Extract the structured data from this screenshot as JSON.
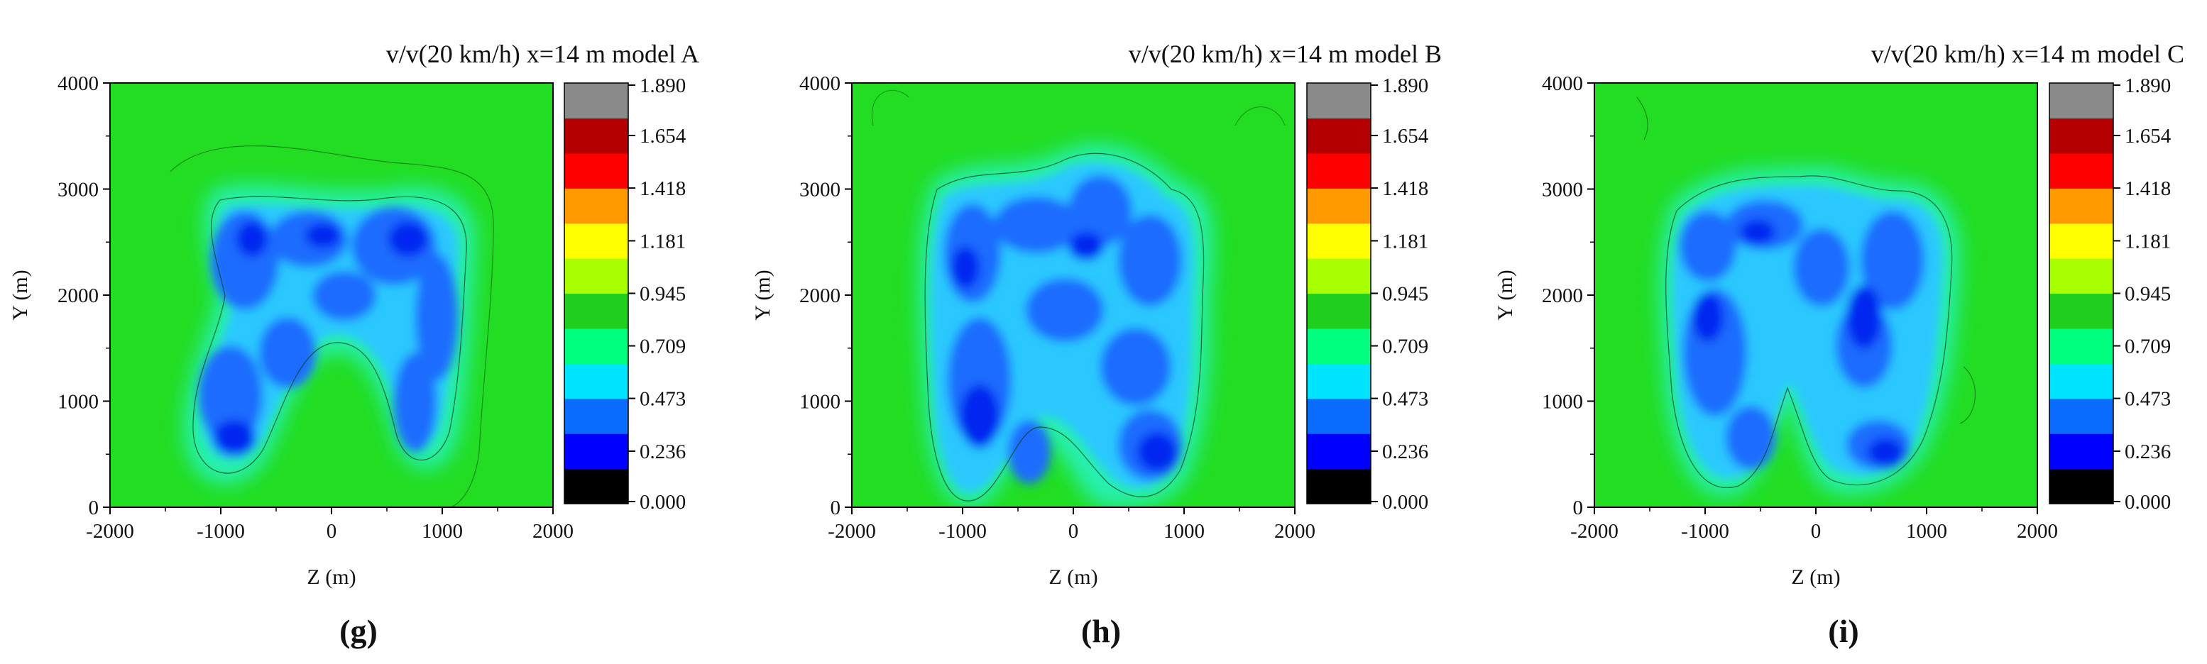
{
  "figure": {
    "panels": [
      "g",
      "h",
      "i"
    ]
  },
  "chart_data": [
    {
      "type": "heatmap",
      "panel_label": "g",
      "title": "v/v(20 km/h) x=14 m model A",
      "xlabel": "Z (m)",
      "ylabel": "Y (m)",
      "xlim": [
        -2000,
        2000
      ],
      "ylim": [
        0,
        4000
      ],
      "xticks": [
        -2000,
        -1000,
        0,
        1000,
        2000
      ],
      "yticks": [
        0,
        1000,
        2000,
        3000,
        4000
      ],
      "colorbar": {
        "min": 0.0,
        "max": 1.89,
        "tick_values": [
          1.89,
          1.654,
          1.418,
          1.181,
          0.945,
          0.709,
          0.473,
          0.236,
          0.0
        ],
        "tick_labels": [
          "1.890",
          "1.654",
          "1.418",
          "1.181",
          "0.945",
          "0.709",
          "0.473",
          "0.236",
          "0.000"
        ],
        "colors": [
          "#000000",
          "#0000ff",
          "#0a6cff",
          "#00e5ff",
          "#00ff7f",
          "#1ecf1e",
          "#a8ff00",
          "#ffff00",
          "#ff9900",
          "#ff0000",
          "#b40000",
          "#8a8a8a"
        ]
      },
      "field": {
        "background": 0.95,
        "low_speed_zone_Z": [
          -1200,
          1100
        ],
        "low_speed_zone_Y": [
          100,
          2900
        ],
        "min_value_approx": 0.2
      }
    },
    {
      "type": "heatmap",
      "panel_label": "h",
      "title": "v/v(20 km/h) x=14 m model B",
      "xlabel": "Z (m)",
      "ylabel": "Y (m)",
      "xlim": [
        -2000,
        2000
      ],
      "ylim": [
        0,
        4000
      ],
      "xticks": [
        -2000,
        -1000,
        0,
        1000,
        2000
      ],
      "yticks": [
        0,
        1000,
        2000,
        3000,
        4000
      ],
      "colorbar": {
        "min": 0.0,
        "max": 1.89,
        "tick_values": [
          1.89,
          1.654,
          1.418,
          1.181,
          0.945,
          0.709,
          0.473,
          0.236,
          0.0
        ],
        "tick_labels": [
          "1.890",
          "1.654",
          "1.418",
          "1.181",
          "0.945",
          "0.709",
          "0.473",
          "0.236",
          "0.000"
        ],
        "colors": [
          "#000000",
          "#0000ff",
          "#0a6cff",
          "#00e5ff",
          "#00ff7f",
          "#1ecf1e",
          "#a8ff00",
          "#ffff00",
          "#ff9900",
          "#ff0000",
          "#b40000",
          "#8a8a8a"
        ]
      },
      "field": {
        "background": 0.95,
        "low_speed_zone_Z": [
          -1300,
          1200
        ],
        "low_speed_zone_Y": [
          0,
          3400
        ],
        "min_value_approx": 0.2
      }
    },
    {
      "type": "heatmap",
      "panel_label": "i",
      "title": "v/v(20 km/h) x=14 m model C",
      "xlabel": "Z (m)",
      "ylabel": "Y (m)",
      "xlim": [
        -2000,
        2000
      ],
      "ylim": [
        0,
        4000
      ],
      "xticks": [
        -2000,
        -1000,
        0,
        1000,
        2000
      ],
      "yticks": [
        0,
        1000,
        2000,
        3000,
        4000
      ],
      "colorbar": {
        "min": 0.0,
        "max": 1.89,
        "tick_values": [
          1.89,
          1.654,
          1.418,
          1.181,
          0.945,
          0.709,
          0.473,
          0.236,
          0.0
        ],
        "tick_labels": [
          "1.890",
          "1.654",
          "1.418",
          "1.181",
          "0.945",
          "0.709",
          "0.473",
          "0.236",
          "0.000"
        ],
        "colors": [
          "#000000",
          "#0000ff",
          "#0a6cff",
          "#00e5ff",
          "#00ff7f",
          "#1ecf1e",
          "#a8ff00",
          "#ffff00",
          "#ff9900",
          "#ff0000",
          "#b40000",
          "#8a8a8a"
        ]
      },
      "field": {
        "background": 0.95,
        "low_speed_zone_Z": [
          -1350,
          1250
        ],
        "low_speed_zone_Y": [
          0,
          3200
        ],
        "min_value_approx": 0.2
      }
    }
  ]
}
